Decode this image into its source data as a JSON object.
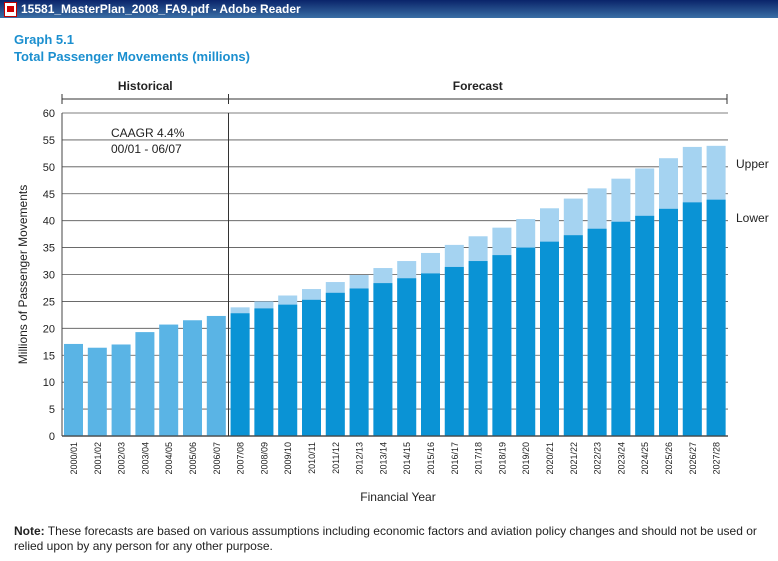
{
  "window": {
    "title": "15581_MasterPlan_2008_FA9.pdf - Adobe Reader",
    "icon": "pdf-document-icon"
  },
  "header": {
    "graph_label": "Graph 5.1",
    "graph_title": "Total Passenger Movements (millions)"
  },
  "note": {
    "label": "Note:",
    "text": "These forecasts are based on various assumptions including economic factors and aviation policy changes and should not be used or relied upon by any person for any other purpose."
  },
  "chart_data": {
    "type": "bar",
    "xlabel": "Financial Year",
    "ylabel": "Millions of Passenger Movements",
    "ylim": [
      0,
      60
    ],
    "yticks": [
      0,
      5,
      10,
      15,
      20,
      25,
      30,
      35,
      40,
      45,
      50,
      55,
      60
    ],
    "grid": true,
    "sections": [
      {
        "label": "Historical",
        "from": "2000/01",
        "to": "2006/07"
      },
      {
        "label": "Forecast",
        "from": "2007/08",
        "to": "2027/28"
      }
    ],
    "annotation": [
      "CAAGR 4.4%",
      "00/01 - 06/07"
    ],
    "series_labels": {
      "upper": "Upper",
      "lower": "Lower"
    },
    "colors": {
      "historical": "#5ab4e5",
      "lower": "#0a93d5",
      "upper": "#a5d3f1",
      "title": "#1b8fcf"
    },
    "categories": [
      "2000/01",
      "2001/02",
      "2002/03",
      "2003/04",
      "2004/05",
      "2005/06",
      "2006/07",
      "2007/08",
      "2008/09",
      "2009/10",
      "2010/11",
      "2011/12",
      "2012/13",
      "2013/14",
      "2014/15",
      "2015/16",
      "2016/17",
      "2017/18",
      "2018/19",
      "2019/20",
      "2020/21",
      "2021/22",
      "2022/23",
      "2023/24",
      "2024/25",
      "2025/26",
      "2026/27",
      "2027/28"
    ],
    "historical": [
      17.1,
      16.4,
      17.0,
      19.3,
      20.7,
      21.5,
      22.3,
      null,
      null,
      null,
      null,
      null,
      null,
      null,
      null,
      null,
      null,
      null,
      null,
      null,
      null,
      null,
      null,
      null,
      null,
      null,
      null,
      null
    ],
    "lower": [
      null,
      null,
      null,
      null,
      null,
      null,
      null,
      22.8,
      23.7,
      24.4,
      25.3,
      26.6,
      27.4,
      28.4,
      29.3,
      30.2,
      31.4,
      32.5,
      33.6,
      35.0,
      36.1,
      37.3,
      38.5,
      39.8,
      40.9,
      42.2,
      43.4,
      43.9
    ],
    "upper": [
      null,
      null,
      null,
      null,
      null,
      null,
      null,
      23.9,
      25.0,
      26.1,
      27.3,
      28.6,
      29.9,
      31.2,
      32.5,
      34.0,
      35.5,
      37.1,
      38.7,
      40.3,
      42.3,
      44.1,
      46.0,
      47.8,
      49.7,
      51.6,
      53.7,
      53.9
    ]
  }
}
